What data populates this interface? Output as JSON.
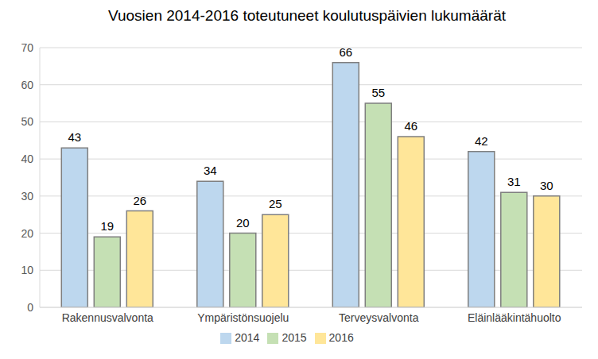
{
  "chart_data": {
    "type": "bar",
    "title": "Vuosien 2014-2016 toteutuneet koulutuspäivien lukumäärät",
    "categories": [
      "Rakennusvalvonta",
      "Ympäristönsuojelu",
      "Terveysvalvonta",
      "Eläinlääkintähuolto"
    ],
    "series": [
      {
        "name": "2014",
        "color": "#bdd7ee",
        "values": [
          43,
          34,
          66,
          42
        ]
      },
      {
        "name": "2015",
        "color": "#c5e0b4",
        "values": [
          19,
          20,
          55,
          31
        ]
      },
      {
        "name": "2016",
        "color": "#ffe699",
        "values": [
          26,
          25,
          46,
          30
        ]
      }
    ],
    "ylim": [
      0,
      70
    ],
    "yticks": [
      0,
      10,
      20,
      30,
      40,
      50,
      60,
      70
    ],
    "grid": true,
    "legend": "bottom",
    "data_labels": true
  }
}
